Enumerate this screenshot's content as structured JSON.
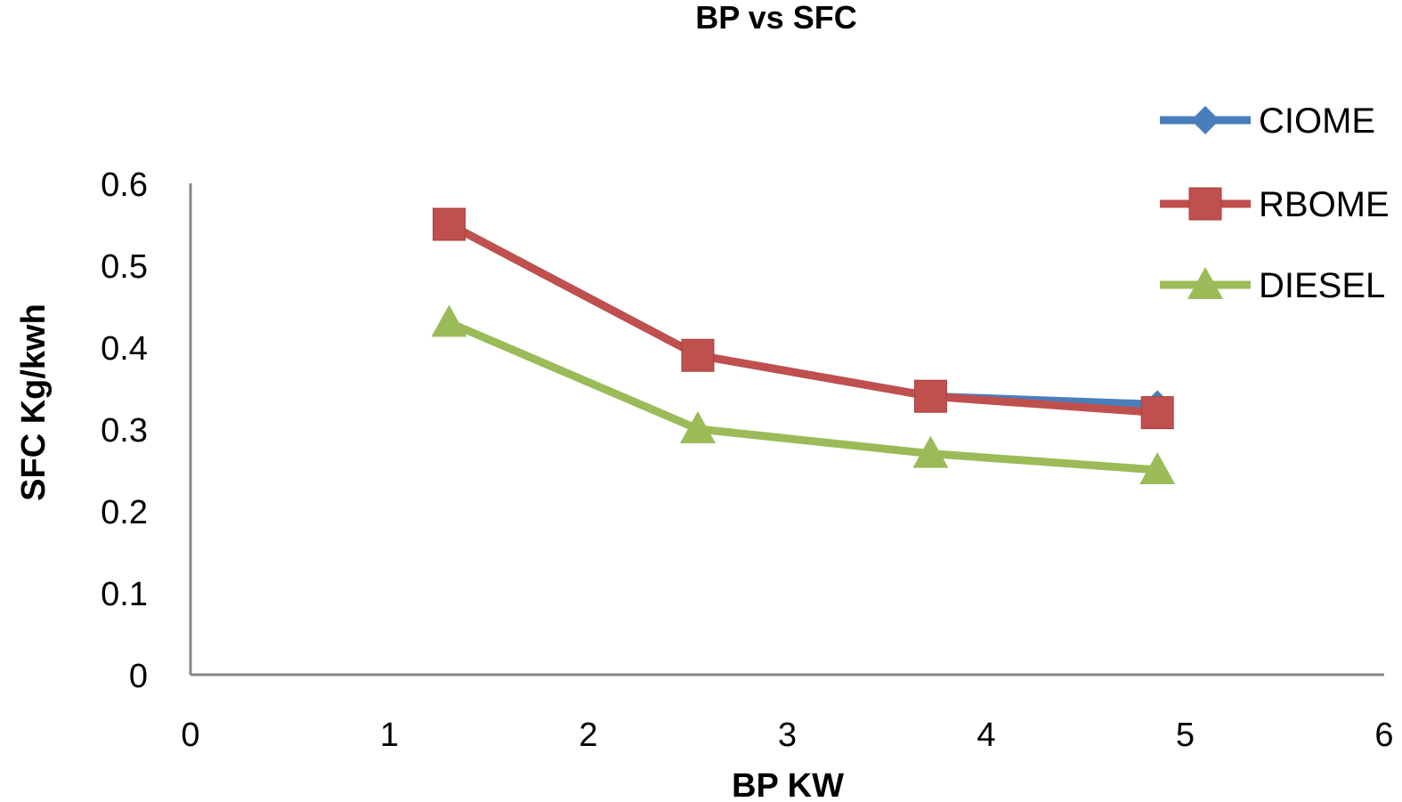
{
  "chart_data": {
    "type": "line",
    "title": "BP vs SFC",
    "xlabel": "BP KW",
    "ylabel": "SFC Kg/kwh",
    "xlim": [
      0,
      6
    ],
    "ylim": [
      0,
      0.6
    ],
    "x_ticks": [
      "0",
      "1",
      "2",
      "3",
      "4",
      "5",
      "6"
    ],
    "y_ticks": [
      "0",
      "0.1",
      "0.2",
      "0.3",
      "0.4",
      "0.5",
      "0.6"
    ],
    "legend_position": "right",
    "series": [
      {
        "name": "CIOME",
        "color": "#4a7ebb",
        "marker": "diamond",
        "x": [
          1.3,
          2.55,
          3.72,
          4.86
        ],
        "y": [
          0.55,
          0.39,
          0.34,
          0.33
        ]
      },
      {
        "name": "RBOME",
        "color": "#c0504d",
        "marker": "square",
        "x": [
          1.3,
          2.55,
          3.72,
          4.86
        ],
        "y": [
          0.55,
          0.39,
          0.34,
          0.32
        ]
      },
      {
        "name": "DIESEL",
        "color": "#9bbb59",
        "marker": "triangle",
        "x": [
          1.3,
          2.55,
          3.72,
          4.86
        ],
        "y": [
          0.43,
          0.3,
          0.27,
          0.25
        ]
      }
    ]
  }
}
